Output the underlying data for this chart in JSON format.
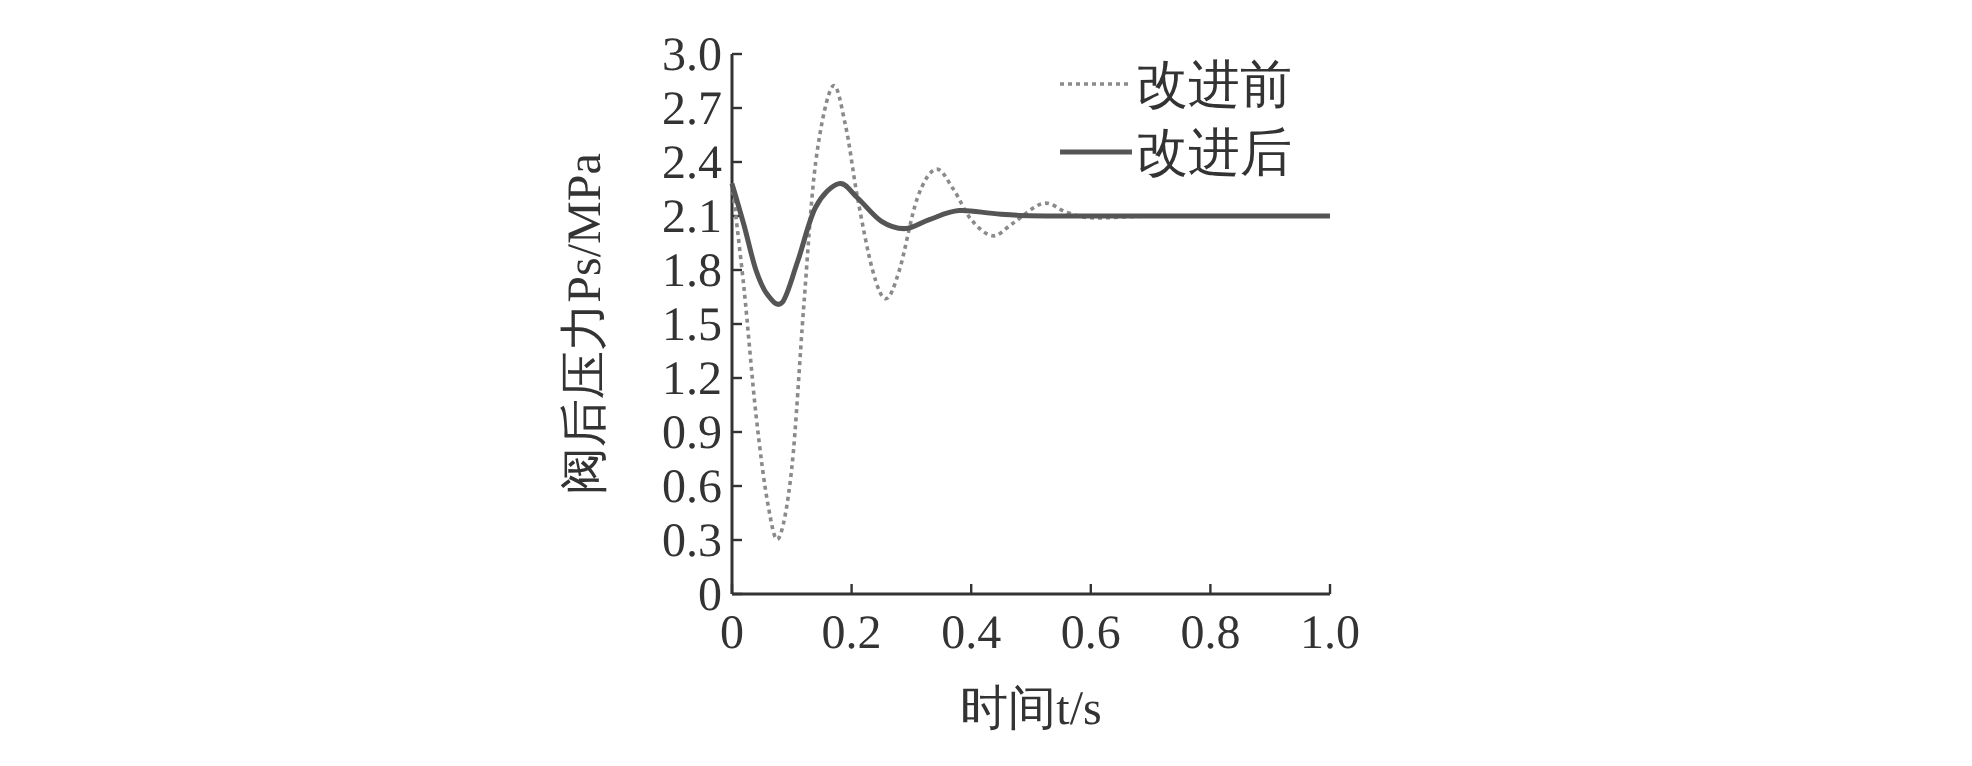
{
  "chart_data": {
    "type": "line",
    "xlabel": "时间t/s",
    "ylabel": "阀后压力Ps/MPa",
    "xlim": [
      0,
      1
    ],
    "ylim": [
      0,
      3
    ],
    "xticks": [
      0,
      0.2,
      0.4,
      0.6,
      0.8,
      {
        "value": 1,
        "label": "1.0"
      }
    ],
    "yticks": [
      0,
      0.3,
      0.6,
      0.9,
      1.2,
      1.5,
      1.8,
      2.1,
      2.4,
      2.7,
      {
        "value": 3,
        "label": "3.0"
      }
    ],
    "legend": "top right",
    "grid": false,
    "marker": "none",
    "series": [
      {
        "name": "改进前",
        "color": "#8a8a8a",
        "line_style": "dotted",
        "x": [
          0,
          0.02,
          0.04,
          0.06,
          0.078,
          0.1,
          0.12,
          0.14,
          0.168,
          0.19,
          0.21,
          0.235,
          0.257,
          0.28,
          0.31,
          0.341,
          0.37,
          0.4,
          0.436,
          0.47,
          0.52,
          0.56,
          0.6,
          0.7,
          0.8,
          1.0
        ],
        "values": [
          2.28,
          1.7,
          1.0,
          0.5,
          0.31,
          0.7,
          1.6,
          2.4,
          2.82,
          2.6,
          2.2,
          1.8,
          1.64,
          1.8,
          2.2,
          2.36,
          2.25,
          2.08,
          1.99,
          2.06,
          2.17,
          2.12,
          2.09,
          2.1,
          2.1,
          2.1
        ]
      },
      {
        "name": "改进后",
        "color": "#555555",
        "line_style": "solid",
        "x": [
          0,
          0.02,
          0.04,
          0.06,
          0.084,
          0.11,
          0.14,
          0.179,
          0.21,
          0.25,
          0.29,
          0.33,
          0.38,
          0.45,
          0.55,
          1.0
        ],
        "values": [
          2.28,
          2.05,
          1.8,
          1.66,
          1.62,
          1.85,
          2.15,
          2.28,
          2.2,
          2.07,
          2.03,
          2.08,
          2.13,
          2.11,
          2.1,
          2.1
        ]
      }
    ]
  }
}
